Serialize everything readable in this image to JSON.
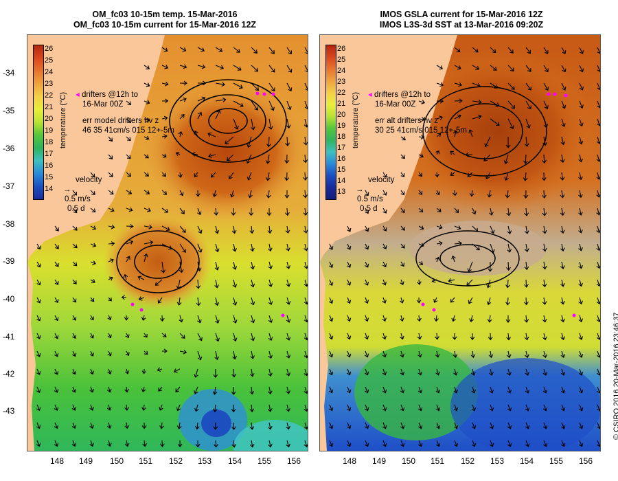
{
  "left_panel": {
    "title_line1": "OM_fc03 10-15m temp. 15-Mar-2016",
    "title_line2": "OM_fc03 10-15m current for 15-Mar-2016 12Z",
    "legend": {
      "drifters_line1": "drifters @12h to",
      "drifters_line2": "16-Mar 00Z",
      "err_line1": "err model drifters hv z",
      "err_line2": "46 35 41cm/s 015 12+-5m",
      "velocity_label": "velocity",
      "scale_line1": "0.5 m/s",
      "scale_line2": "0.5 d"
    },
    "colorbar": {
      "title": "temperature (°C)",
      "ticks": [
        "26",
        "25",
        "24",
        "23",
        "22",
        "21",
        "20",
        "19",
        "18",
        "17",
        "16",
        "15",
        "14"
      ]
    }
  },
  "right_panel": {
    "title_line1": "IMOS GSLA current for 15-Mar-2016 12Z",
    "title_line2": "IMOS L3S-3d SST at 13-Mar-2016 09:20Z",
    "legend": {
      "drifters_line1": "drifters @12h to",
      "drifters_line2": "16-Mar 00Z",
      "err_line1": "err alt drifters hv z",
      "err_line2": "30 25 41cm/s 015 12+-5m",
      "velocity_label": "velocity",
      "scale_line1": "0.5 m/s",
      "scale_line2": "0.5 d"
    },
    "colorbar": {
      "title": "temperature (°C)",
      "ticks": [
        "26",
        "25",
        "24",
        "23",
        "22",
        "21",
        "20",
        "19",
        "18",
        "17",
        "16",
        "15",
        "14",
        "13"
      ]
    }
  },
  "axes": {
    "y_ticks": [
      "-34",
      "-35",
      "-36",
      "-37",
      "-38",
      "-39",
      "-40",
      "-41",
      "-42",
      "-43"
    ],
    "x_ticks": [
      "148",
      "149",
      "150",
      "151",
      "152",
      "153",
      "154",
      "155",
      "156"
    ]
  },
  "colors": {
    "land": "#f9c79a",
    "warm": "#c85a14",
    "mid": "#e7a33b",
    "yellow": "#e2e22a",
    "green": "#2fbf2f",
    "cool": "#1f5fd0",
    "drifter": "#ff00ff",
    "missing": "#c8ab90"
  },
  "credit": "© CSIRO 2016   20-Mar-2016 23:46:37"
}
